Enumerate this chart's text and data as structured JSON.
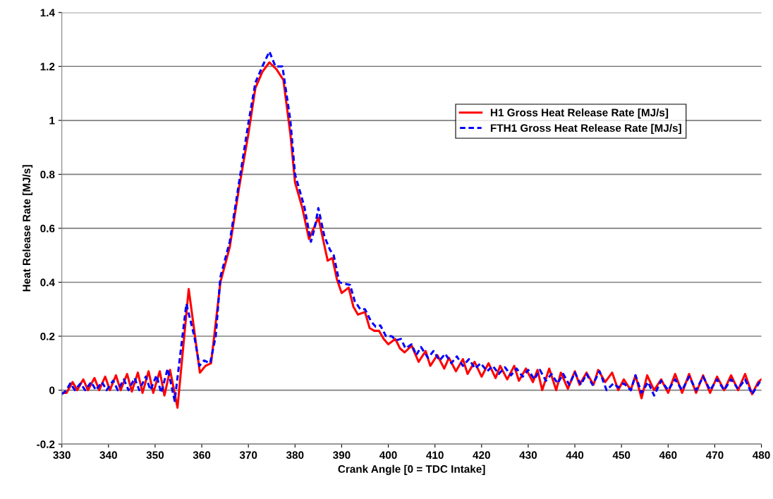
{
  "chart_data": {
    "type": "line",
    "xlabel": "Crank Angle [0 = TDC Intake]",
    "ylabel": "Heat Release Rate [MJ/s]",
    "xlim": [
      330,
      480
    ],
    "xticks": [
      330,
      340,
      350,
      360,
      370,
      380,
      390,
      400,
      410,
      420,
      430,
      440,
      450,
      460,
      470,
      480
    ],
    "ylim": [
      -0.2,
      1.4
    ],
    "yticks": [
      -0.2,
      0,
      0.2,
      0.4,
      0.6,
      0.8,
      1,
      1.2,
      1.4
    ],
    "grid": "y",
    "legend": "top right",
    "marker": "none",
    "series": [
      {
        "name": "H1 Gross Heat Release Rate [MJ/s]",
        "color": "#ff0000",
        "line_style": "solid",
        "x": [
          330,
          331,
          332.3,
          333.3,
          334.6,
          335.6,
          337,
          338,
          339.3,
          340.3,
          341.6,
          342.6,
          344,
          345,
          346.3,
          347.3,
          348.6,
          349.6,
          351,
          352,
          353.2,
          354.8,
          357.2,
          359.6,
          360.8,
          362,
          364,
          366,
          368,
          370,
          371.5,
          373,
          374.5,
          376,
          377.5,
          379,
          380,
          381.5,
          383,
          384,
          385,
          386,
          387,
          388,
          389,
          390,
          391.5,
          392.5,
          393.5,
          395,
          396,
          397,
          398,
          399,
          400,
          401.5,
          402.5,
          403.5,
          405,
          406.5,
          408,
          409,
          410.5,
          412,
          413,
          414.5,
          416,
          417,
          418.5,
          420,
          421.5,
          423,
          424,
          425.5,
          427,
          428,
          429.5,
          431,
          432,
          433,
          434.5,
          436,
          437,
          438.5,
          440,
          441,
          442.5,
          444,
          445,
          446.5,
          448,
          449.3,
          450.5,
          452,
          453,
          454.3,
          455.5,
          457,
          458.5,
          460,
          461.5,
          463,
          464.5,
          466,
          467.5,
          469,
          470.5,
          472,
          473.5,
          475,
          476.5,
          478,
          479.3,
          480
        ],
        "values": [
          -0.01,
          -0.01,
          0.03,
          0.0,
          0.04,
          0.0,
          0.045,
          0.0,
          0.05,
          0.0,
          0.055,
          0.0,
          0.06,
          -0.005,
          0.065,
          -0.01,
          0.07,
          -0.01,
          0.07,
          -0.02,
          0.075,
          -0.065,
          0.375,
          0.065,
          0.09,
          0.1,
          0.4,
          0.53,
          0.75,
          0.95,
          1.12,
          1.18,
          1.215,
          1.19,
          1.15,
          0.95,
          0.77,
          0.68,
          0.56,
          0.6,
          0.64,
          0.56,
          0.48,
          0.49,
          0.41,
          0.36,
          0.38,
          0.31,
          0.28,
          0.29,
          0.23,
          0.22,
          0.22,
          0.19,
          0.17,
          0.19,
          0.155,
          0.14,
          0.165,
          0.105,
          0.145,
          0.09,
          0.13,
          0.08,
          0.12,
          0.07,
          0.115,
          0.06,
          0.105,
          0.05,
          0.1,
          0.045,
          0.09,
          0.04,
          0.09,
          0.035,
          0.08,
          0.03,
          0.075,
          0.0,
          0.08,
          0.0,
          0.065,
          0.005,
          0.07,
          0.02,
          0.065,
          0.02,
          0.075,
          0.03,
          0.065,
          0.0,
          0.04,
          0.0,
          0.055,
          -0.03,
          0.055,
          0.0,
          0.04,
          -0.01,
          0.06,
          -0.01,
          0.06,
          -0.01,
          0.055,
          -0.01,
          0.05,
          0.0,
          0.055,
          0.0,
          0.06,
          -0.015,
          0.03,
          0.04
        ]
      },
      {
        "name": "FTH1 Gross Heat Release Rate [MJ/s]",
        "color": "#0000ff",
        "line_style": "dashed",
        "x": [
          330,
          331,
          331.8,
          332.8,
          334,
          335,
          336.3,
          337.3,
          338.6,
          339.6,
          341,
          342,
          343.3,
          344.3,
          345.6,
          346.6,
          348,
          349,
          350.3,
          351.3,
          352.7,
          354.2,
          356.7,
          358.4,
          359.5,
          360.5,
          361.8,
          363,
          364,
          366,
          368,
          370,
          371.5,
          373,
          374.5,
          375.8,
          377.3,
          379,
          380,
          382,
          383.4,
          384.2,
          385,
          386.3,
          387.5,
          388.3,
          389.5,
          390.5,
          391.8,
          392.8,
          394,
          395,
          396.3,
          397.3,
          398.3,
          399.5,
          400.7,
          401.7,
          402.7,
          403.7,
          405,
          406,
          407,
          408.5,
          409.7,
          411,
          412.2,
          413.5,
          414.7,
          416,
          417.3,
          418.6,
          419.8,
          421.2,
          422.4,
          423.7,
          425,
          426.3,
          427.5,
          428.8,
          430,
          431.3,
          432.5,
          433.8,
          435,
          436.3,
          437.5,
          438.8,
          440,
          441.3,
          442.5,
          443.8,
          445.3,
          446.8,
          448.3,
          449.3,
          450.5,
          452,
          453,
          454.3,
          455.7,
          457,
          458.5,
          460,
          461.5,
          463,
          464.5,
          466,
          467.5,
          469,
          470.5,
          472,
          473.5,
          475,
          476.5,
          478,
          480
        ],
        "values": [
          -0.015,
          0.0,
          0.025,
          0.0,
          0.025,
          0.0,
          0.03,
          0.0,
          0.03,
          0.0,
          0.035,
          0.0,
          0.04,
          0.0,
          0.045,
          0.0,
          0.05,
          0.0,
          0.055,
          -0.01,
          0.08,
          -0.04,
          0.32,
          0.2,
          0.09,
          0.11,
          0.1,
          0.2,
          0.42,
          0.55,
          0.77,
          0.99,
          1.14,
          1.2,
          1.255,
          1.2,
          1.2,
          1.0,
          0.8,
          0.68,
          0.55,
          0.6,
          0.675,
          0.57,
          0.52,
          0.5,
          0.4,
          0.395,
          0.39,
          0.33,
          0.3,
          0.3,
          0.255,
          0.235,
          0.24,
          0.2,
          0.2,
          0.185,
          0.19,
          0.155,
          0.17,
          0.13,
          0.16,
          0.12,
          0.145,
          0.11,
          0.135,
          0.1,
          0.125,
          0.09,
          0.115,
          0.08,
          0.1,
          0.07,
          0.09,
          0.06,
          0.085,
          0.055,
          0.08,
          0.05,
          0.075,
          0.04,
          0.075,
          0.035,
          0.06,
          0.025,
          0.06,
          0.02,
          0.065,
          0.02,
          0.06,
          0.02,
          0.07,
          0.0,
          0.025,
          0.01,
          0.025,
          0.0,
          0.055,
          -0.01,
          0.03,
          -0.02,
          0.035,
          0.0,
          0.04,
          0.0,
          0.05,
          0.0,
          0.05,
          0.0,
          0.04,
          0.0,
          0.04,
          0.005,
          0.04,
          -0.015,
          0.04
        ]
      }
    ]
  }
}
